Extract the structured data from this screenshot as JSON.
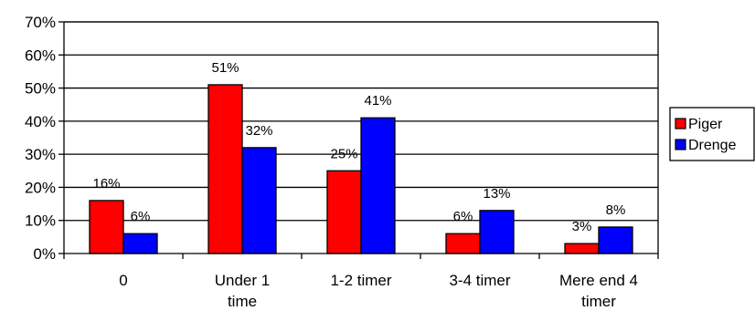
{
  "chart_data": {
    "type": "bar",
    "categories": [
      [
        "0"
      ],
      [
        "Under 1",
        "time"
      ],
      [
        "1-2 timer"
      ],
      [
        "3-4 timer"
      ],
      [
        "Mere end 4",
        "timer"
      ]
    ],
    "series": [
      {
        "name": "Piger",
        "color": "#ff0000",
        "values": [
          16,
          51,
          25,
          6,
          3
        ],
        "labels": [
          "16%",
          "51%",
          "25%",
          "6%",
          "3%"
        ]
      },
      {
        "name": "Drenge",
        "color": "#0000ff",
        "values": [
          6,
          32,
          41,
          13,
          8
        ],
        "labels": [
          "6%",
          "32%",
          "41%",
          "13%",
          "8%"
        ]
      }
    ],
    "ylim": [
      0,
      70
    ],
    "yticks": [
      0,
      10,
      20,
      30,
      40,
      50,
      60,
      70
    ],
    "ytick_labels": [
      "0%",
      "10%",
      "20%",
      "30%",
      "40%",
      "50%",
      "60%",
      "70%"
    ],
    "grid": true,
    "legend": {
      "placement": "right"
    }
  }
}
